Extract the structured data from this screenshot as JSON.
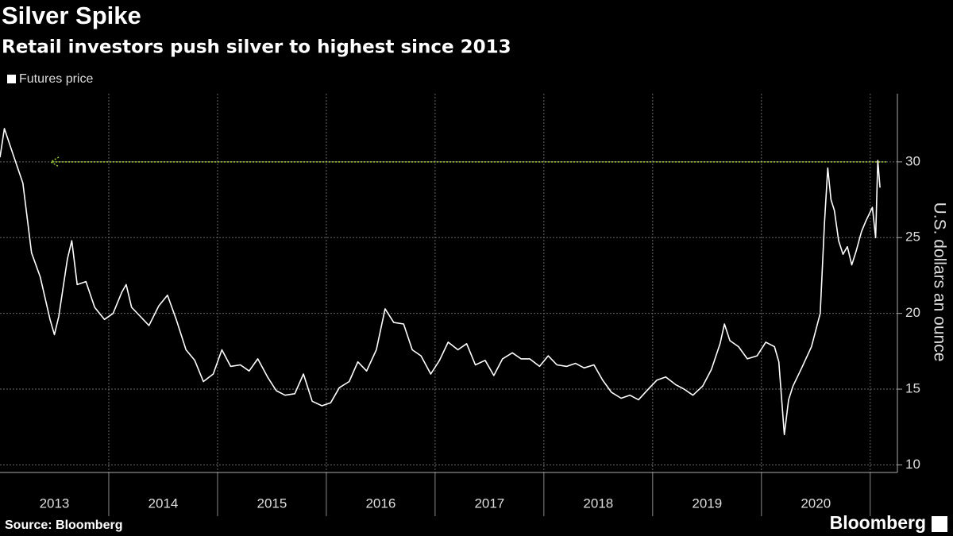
{
  "chart_data": {
    "type": "line",
    "title": "Silver Spike",
    "subtitle": "Retail investors push silver to highest since 2013",
    "y_label": "U.S. dollars an ounce",
    "source": "Source: Bloomberg",
    "logo": "Bloomberg",
    "x": [
      2013.0,
      2013.04,
      2013.12,
      2013.21,
      2013.29,
      2013.37,
      2013.46,
      2013.5,
      2013.54,
      2013.62,
      2013.66,
      2013.71,
      2013.79,
      2013.87,
      2013.96,
      2014.04,
      2014.12,
      2014.16,
      2014.21,
      2014.29,
      2014.37,
      2014.46,
      2014.54,
      2014.62,
      2014.71,
      2014.79,
      2014.87,
      2014.96,
      2015.04,
      2015.12,
      2015.21,
      2015.29,
      2015.37,
      2015.46,
      2015.54,
      2015.62,
      2015.71,
      2015.79,
      2015.87,
      2015.96,
      2016.04,
      2016.12,
      2016.21,
      2016.29,
      2016.37,
      2016.46,
      2016.54,
      2016.62,
      2016.71,
      2016.79,
      2016.87,
      2016.96,
      2017.04,
      2017.12,
      2017.21,
      2017.29,
      2017.37,
      2017.46,
      2017.54,
      2017.62,
      2017.71,
      2017.79,
      2017.87,
      2017.96,
      2018.04,
      2018.12,
      2018.21,
      2018.29,
      2018.37,
      2018.46,
      2018.54,
      2018.62,
      2018.71,
      2018.79,
      2018.87,
      2018.96,
      2019.04,
      2019.12,
      2019.21,
      2019.29,
      2019.37,
      2019.46,
      2019.54,
      2019.62,
      2019.66,
      2019.71,
      2019.79,
      2019.87,
      2019.96,
      2020.04,
      2020.12,
      2020.16,
      2020.21,
      2020.25,
      2020.29,
      2020.37,
      2020.46,
      2020.54,
      2020.58,
      2020.61,
      2020.64,
      2020.67,
      2020.71,
      2020.75,
      2020.79,
      2020.83,
      2020.87,
      2020.92,
      2020.96,
      2021.02,
      2021.05,
      2021.07,
      2021.09
    ],
    "series": [
      {
        "name": "Futures price",
        "color": "#ffffff",
        "values": [
          30.3,
          32.2,
          30.5,
          28.6,
          24.0,
          22.4,
          19.6,
          18.6,
          19.8,
          23.6,
          24.8,
          21.9,
          22.1,
          20.4,
          19.6,
          20.0,
          21.4,
          21.9,
          20.4,
          19.8,
          19.2,
          20.5,
          21.2,
          19.6,
          17.6,
          16.9,
          15.5,
          16.0,
          17.6,
          16.5,
          16.6,
          16.2,
          17.0,
          15.8,
          14.9,
          14.6,
          14.7,
          16.0,
          14.2,
          13.9,
          14.1,
          15.1,
          15.5,
          16.8,
          16.2,
          17.6,
          20.3,
          19.4,
          19.3,
          17.6,
          17.2,
          16.0,
          16.9,
          18.1,
          17.6,
          18.0,
          16.6,
          16.9,
          15.9,
          17.0,
          17.4,
          17.0,
          17.0,
          16.5,
          17.2,
          16.6,
          16.5,
          16.7,
          16.4,
          16.6,
          15.6,
          14.8,
          14.4,
          14.6,
          14.3,
          15.0,
          15.6,
          15.8,
          15.3,
          15.0,
          14.6,
          15.2,
          16.3,
          18.0,
          19.3,
          18.2,
          17.8,
          17.0,
          17.2,
          18.1,
          17.8,
          16.8,
          12.0,
          14.3,
          15.2,
          16.4,
          17.8,
          20.0,
          26.0,
          29.6,
          27.5,
          26.8,
          24.8,
          23.9,
          24.4,
          23.2,
          24.1,
          25.4,
          26.1,
          27.0,
          25.0,
          30.1,
          28.3
        ]
      }
    ],
    "xlim": [
      2013,
      2021.25
    ],
    "xticks": [
      {
        "value": 2013.5,
        "label": "2013"
      },
      {
        "value": 2014.5,
        "label": "2014"
      },
      {
        "value": 2015.5,
        "label": "2015"
      },
      {
        "value": 2016.5,
        "label": "2016"
      },
      {
        "value": 2017.5,
        "label": "2017"
      },
      {
        "value": 2018.5,
        "label": "2018"
      },
      {
        "value": 2019.5,
        "label": "2019"
      },
      {
        "value": 2020.5,
        "label": "2020"
      }
    ],
    "x_gridlines": [
      2014,
      2015,
      2016,
      2017,
      2018,
      2019,
      2020,
      2021
    ],
    "ylim": [
      9.5,
      34.5
    ],
    "yticks": [
      10,
      15,
      20,
      25,
      30
    ],
    "grid": true,
    "reference_line": {
      "value": 30,
      "color": "#9acd32"
    }
  }
}
